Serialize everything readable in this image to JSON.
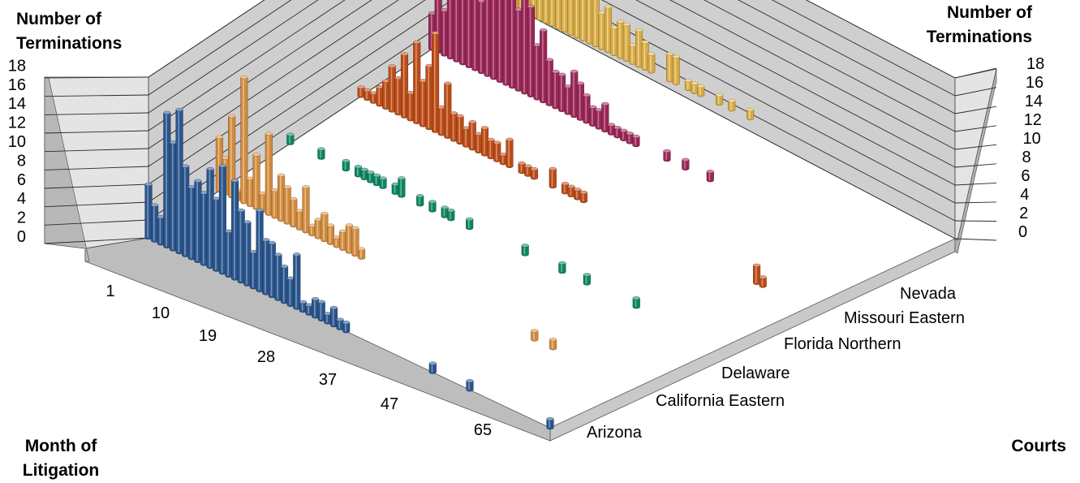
{
  "chart_data": {
    "type": "bar",
    "subtype": "3d-column",
    "y_axis_title": [
      "Number of",
      "Terminations"
    ],
    "x_axis_title": [
      "Month of",
      "Litigation"
    ],
    "z_axis_title": "Courts",
    "ylim": [
      0,
      18
    ],
    "y_ticks": [
      "18",
      "16",
      "14",
      "12",
      "10",
      "8",
      "6",
      "4",
      "2",
      "0"
    ],
    "month_tick_labels": [
      "1",
      "10",
      "19",
      "28",
      "37",
      "47",
      "65"
    ],
    "court_tick_labels": [
      "Nevada",
      "Missouri Eastern",
      "Florida Northern",
      "Delaware",
      "California Eastern",
      "Arizona"
    ],
    "gridlines": true,
    "series": [
      {
        "name": "Arizona",
        "color": "#2e5c97",
        "values": [
          6,
          4,
          3,
          15,
          12,
          16,
          10,
          8,
          9,
          8,
          11,
          8,
          12,
          5,
          11,
          8,
          7,
          4,
          9,
          6,
          6,
          5,
          4,
          3,
          6,
          1,
          1,
          2,
          2,
          1,
          2,
          1,
          1,
          0,
          0,
          0,
          0,
          0,
          0,
          0,
          0,
          0,
          0,
          0,
          0,
          0,
          1,
          0,
          0,
          0,
          0,
          0,
          1,
          0,
          0,
          0,
          0,
          0,
          0,
          0,
          0,
          0,
          0,
          0,
          0,
          1
        ]
      },
      {
        "name": "California Eastern",
        "color": "#e19746",
        "values": [
          6,
          4,
          9,
          1,
          14,
          3,
          6,
          2,
          9,
          3,
          5,
          4,
          3,
          2,
          5,
          1,
          2,
          3,
          2,
          1,
          2,
          3,
          3,
          1,
          0,
          0,
          0,
          0,
          0,
          0,
          0,
          0,
          0,
          0,
          0,
          0,
          0,
          0,
          0,
          0,
          0,
          0,
          0,
          0,
          0,
          0,
          0,
          0,
          0,
          0,
          0,
          1,
          0,
          0,
          1
        ]
      },
      {
        "name": "Delaware",
        "color": "#0f8f6a",
        "values": [
          1,
          0,
          0,
          0,
          0,
          1,
          0,
          0,
          0,
          1,
          0,
          1,
          1,
          1,
          1,
          1,
          0,
          1,
          2,
          0,
          0,
          1,
          0,
          1,
          0,
          1,
          1,
          0,
          0,
          1,
          0,
          0,
          0,
          0,
          0,
          0,
          0,
          0,
          1,
          0,
          0,
          0,
          0,
          0,
          1,
          0,
          0,
          0,
          1,
          0,
          0,
          0,
          0,
          0,
          0,
          0,
          1
        ]
      },
      {
        "name": "Florida Northern",
        "color": "#c9531b",
        "values": [
          1,
          1,
          1,
          2,
          3,
          5,
          4,
          7,
          3,
          9,
          5,
          7,
          11,
          3,
          6,
          3,
          3,
          2,
          3,
          2,
          3,
          2,
          2,
          1,
          3,
          0,
          1,
          1,
          1,
          0,
          0,
          2,
          0,
          1,
          1,
          1,
          1,
          0,
          0,
          0,
          0,
          0,
          0,
          0,
          0,
          0,
          0,
          0,
          0,
          0,
          0,
          0,
          0,
          0,
          0,
          0,
          0,
          0,
          0,
          0,
          0,
          0,
          0,
          0,
          2,
          1
        ]
      },
      {
        "name": "Missouri Eastern",
        "color": "#a52a5e",
        "values": [
          4,
          6,
          5,
          7,
          9,
          9,
          11,
          13,
          8,
          15,
          14,
          17,
          10,
          11,
          9,
          12,
          10,
          6,
          8,
          5,
          4,
          4,
          3,
          5,
          4,
          3,
          2,
          2,
          3,
          1,
          1,
          1,
          1,
          1,
          0,
          0,
          0,
          0,
          1,
          0,
          0,
          1,
          0,
          0,
          0,
          1
        ]
      },
      {
        "name": "Nevada",
        "color": "#e8b94e",
        "values": [
          7,
          17,
          17,
          12,
          11,
          9,
          10,
          14,
          9,
          8,
          7,
          8,
          12,
          7,
          5,
          6,
          4,
          5,
          3,
          4,
          4,
          2,
          4,
          3,
          2,
          0,
          0,
          3,
          3,
          0,
          1,
          1,
          1,
          0,
          0,
          1,
          0,
          1,
          0,
          0,
          1
        ]
      }
    ]
  }
}
